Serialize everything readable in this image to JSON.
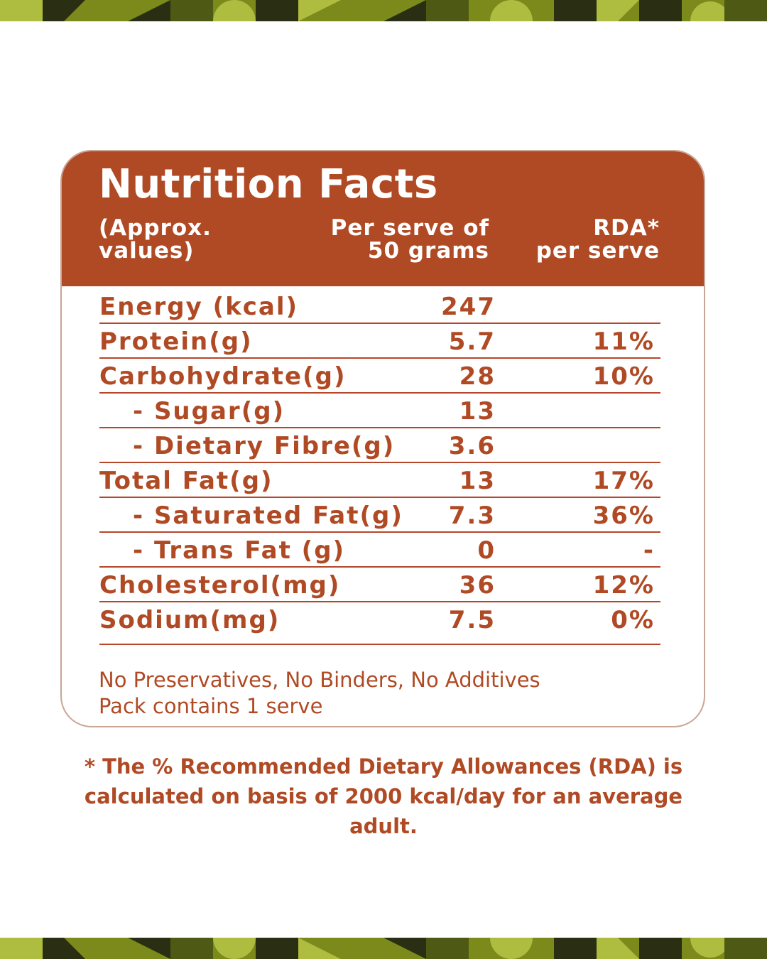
{
  "theme": {
    "header_bg": "#b04a24",
    "text_color": "#b04a24",
    "band_dark": "#2a2e12",
    "band_olive": "#7c8a1c",
    "band_light": "#aebd3f"
  },
  "panel": {
    "title": "Nutrition Facts",
    "col_name": "(Approx.\nvalues)",
    "col_serve": "Per serve of\n50 grams",
    "col_rda": "RDA*\nper serve"
  },
  "rows": [
    {
      "label": "Energy (kcal)",
      "value": "247",
      "rda": ""
    },
    {
      "label": "Protein(g)",
      "value": "5.7",
      "rda": "11%"
    },
    {
      "label": "Carbohydrate(g)",
      "value": "28",
      "rda": "10%"
    },
    {
      "label": "- Sugar(g)",
      "value": "13",
      "rda": ""
    },
    {
      "label": "- Dietary Fibre(g)",
      "value": "3.6",
      "rda": ""
    },
    {
      "label": "Total Fat(g)",
      "value": "13",
      "rda": "17%"
    },
    {
      "label": "- Saturated Fat(g)",
      "value": "7.3",
      "rda": "36%"
    },
    {
      "label": "- Trans Fat (g)",
      "value": "0",
      "rda": "-"
    },
    {
      "label": "Cholesterol(mg)",
      "value": "36",
      "rda": "12%"
    },
    {
      "label": "Sodium(mg)",
      "value": "7.5",
      "rda": "0%"
    }
  ],
  "notes": {
    "line1": "No Preservatives, No Binders, No Additives",
    "line2": "Pack contains 1 serve"
  },
  "footnote": "* The % Recommended Dietary Allowances (RDA) is calculated on basis of 2000 kcal/day for an average adult."
}
